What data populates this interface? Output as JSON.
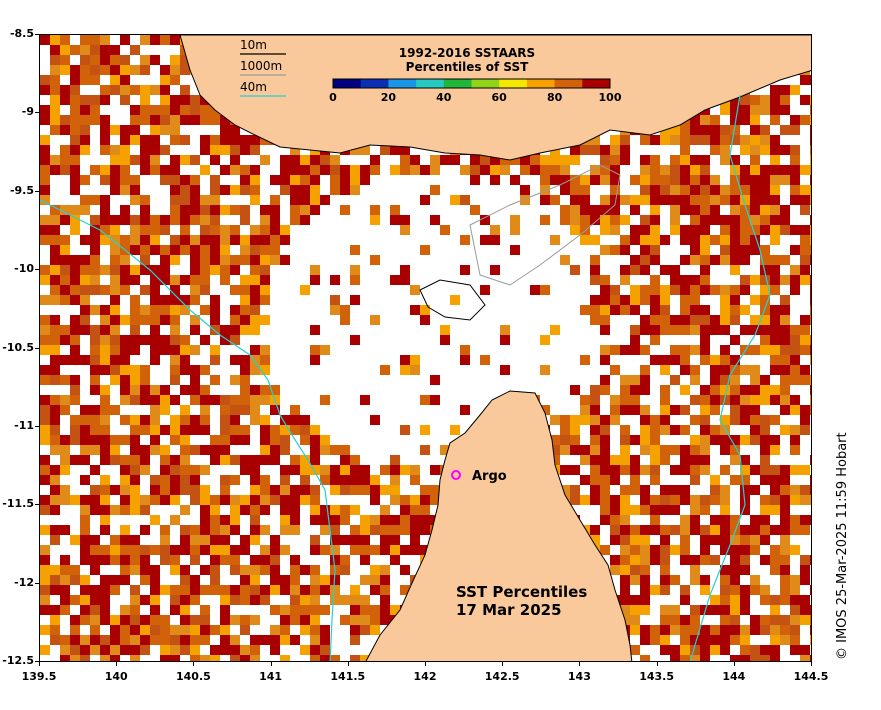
{
  "map": {
    "colorbar_title_line1": "1992-2016 SSTAARS",
    "colorbar_title_line2": "Percentiles of SST",
    "colorbar_ticks": [
      "0",
      "20",
      "40",
      "60",
      "80",
      "100"
    ],
    "colorbar_colors": [
      "#00007f",
      "#0a2fb4",
      "#1a96e6",
      "#27c9c3",
      "#21b53a",
      "#8fd418",
      "#f5e800",
      "#f5a200",
      "#d2620a",
      "#a80000"
    ],
    "depth_legend": [
      {
        "label": "10m",
        "color": "#000000"
      },
      {
        "label": "1000m",
        "color": "#9a9a9a"
      },
      {
        "label": "40m",
        "color": "#21d2d8"
      }
    ],
    "argo_label": "Argo",
    "panel_title_line1": "SST Percentiles",
    "panel_title_line2": "17 Mar 2025",
    "x_ticks": [
      "139.5",
      "140",
      "140.5",
      "141",
      "141.5",
      "142",
      "142.5",
      "143",
      "143.5",
      "144",
      "144.5"
    ],
    "y_ticks": [
      "-8.5",
      "-9",
      "-9.5",
      "-10",
      "-10.5",
      "-11",
      "-11.5",
      "-12",
      "-12.5"
    ],
    "copyright": "© IMOS 25-Mar-2025 11:59 Hobart",
    "land_color": "#f9c89b",
    "argo_color": "#ff00ff"
  }
}
